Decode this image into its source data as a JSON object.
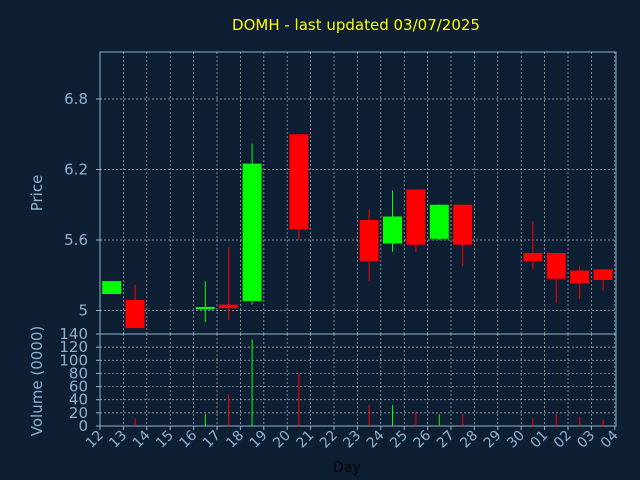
{
  "chart_data": {
    "type": "candlestick",
    "title": "DOMH - last updated 03/07/2025",
    "xlabel": "Day",
    "price_ylabel": "Price",
    "volume_ylabel": "Volume (0000)",
    "price_yticks": [
      "5",
      "5.6",
      "6.2",
      "6.8"
    ],
    "price_tick_values": [
      5,
      5.6,
      6.2,
      6.8
    ],
    "price_ylim": [
      4.8,
      7.2
    ],
    "volume_yticks": [
      "0",
      "20",
      "40",
      "60",
      "80",
      "100",
      "120",
      "140"
    ],
    "volume_tick_values": [
      0,
      20,
      40,
      60,
      80,
      100,
      120,
      140
    ],
    "volume_ylim": [
      0,
      140
    ],
    "x_ticks": [
      "12",
      "13",
      "14",
      "15",
      "16",
      "17",
      "18",
      "19",
      "20",
      "21",
      "22",
      "23",
      "24",
      "25",
      "26",
      "27",
      "28",
      "29",
      "30",
      "01",
      "02",
      "03",
      "04"
    ],
    "colors": {
      "up": "#00ff00",
      "down": "#ff0000",
      "grid": "#ffffff",
      "plot_border": "#8fb0d0",
      "title": "#ffff00",
      "tick": "#8fb0d0"
    },
    "candles": [
      {
        "x": 0,
        "open": 5.14,
        "high": 5.25,
        "low": 5.14,
        "close": 5.25,
        "volume": 0
      },
      {
        "x": 1,
        "open": 5.09,
        "high": 5.22,
        "low": 4.85,
        "close": 4.85,
        "volume": 12
      },
      {
        "x": 4,
        "open": 5.01,
        "high": 5.25,
        "low": 4.9,
        "close": 5.03,
        "volume": 18
      },
      {
        "x": 5,
        "open": 5.05,
        "high": 5.54,
        "low": 4.92,
        "close": 5.02,
        "volume": 48
      },
      {
        "x": 6,
        "open": 5.08,
        "high": 6.42,
        "low": 5.05,
        "close": 6.25,
        "volume": 132
      },
      {
        "x": 8,
        "open": 6.5,
        "high": 6.5,
        "low": 5.6,
        "close": 5.69,
        "volume": 80
      },
      {
        "x": 11,
        "open": 5.77,
        "high": 5.86,
        "low": 5.25,
        "close": 5.42,
        "volume": 32
      },
      {
        "x": 12,
        "open": 5.57,
        "high": 6.02,
        "low": 5.5,
        "close": 5.8,
        "volume": 32
      },
      {
        "x": 13,
        "open": 6.03,
        "high": 6.03,
        "low": 5.5,
        "close": 5.56,
        "volume": 22
      },
      {
        "x": 14,
        "open": 5.61,
        "high": 5.9,
        "low": 5.6,
        "close": 5.9,
        "volume": 18
      },
      {
        "x": 15,
        "open": 5.9,
        "high": 5.9,
        "low": 5.38,
        "close": 5.56,
        "volume": 18
      },
      {
        "x": 18,
        "open": 5.49,
        "high": 5.76,
        "low": 5.35,
        "close": 5.42,
        "volume": 12
      },
      {
        "x": 19,
        "open": 5.49,
        "high": 5.49,
        "low": 5.07,
        "close": 5.27,
        "volume": 18
      },
      {
        "x": 20,
        "open": 5.34,
        "high": 5.38,
        "low": 5.1,
        "close": 5.23,
        "volume": 14
      },
      {
        "x": 21,
        "open": 5.35,
        "high": 5.35,
        "low": 5.17,
        "close": 5.26,
        "volume": 10
      }
    ]
  }
}
